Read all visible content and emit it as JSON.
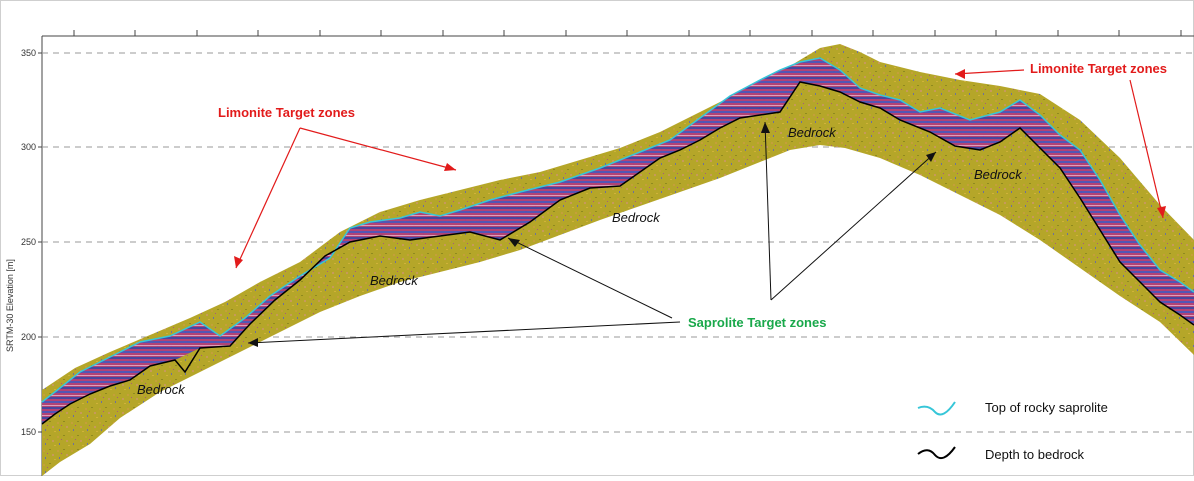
{
  "figure": {
    "y_axis_label": "SRTM-30 Elevation [m]",
    "y_ticks": [
      "350",
      "300",
      "250",
      "200",
      "150"
    ],
    "annotations": {
      "limonite_left": "Limonite Target zones",
      "limonite_right": "Limonite Target zones",
      "saprolite": "Saprolite Target zones",
      "bedrock_labels": [
        "Bedrock",
        "Bedrock",
        "Bedrock",
        "Bedrock",
        "Bedrock"
      ]
    },
    "legend": [
      {
        "label": "Top of rocky saprolite",
        "color": "#36c6d8",
        "icon": "cyan-wave-icon"
      },
      {
        "label": "Depth to bedrock",
        "color": "#000000",
        "icon": "black-wave-icon"
      }
    ],
    "colors": {
      "fill_band": "#b5a629",
      "saprolite_band": "#b23a7c",
      "limonite_arrow": "#e21b1b",
      "saprolite_arrow": "#111111",
      "grid": "#9a9a9a"
    }
  }
}
